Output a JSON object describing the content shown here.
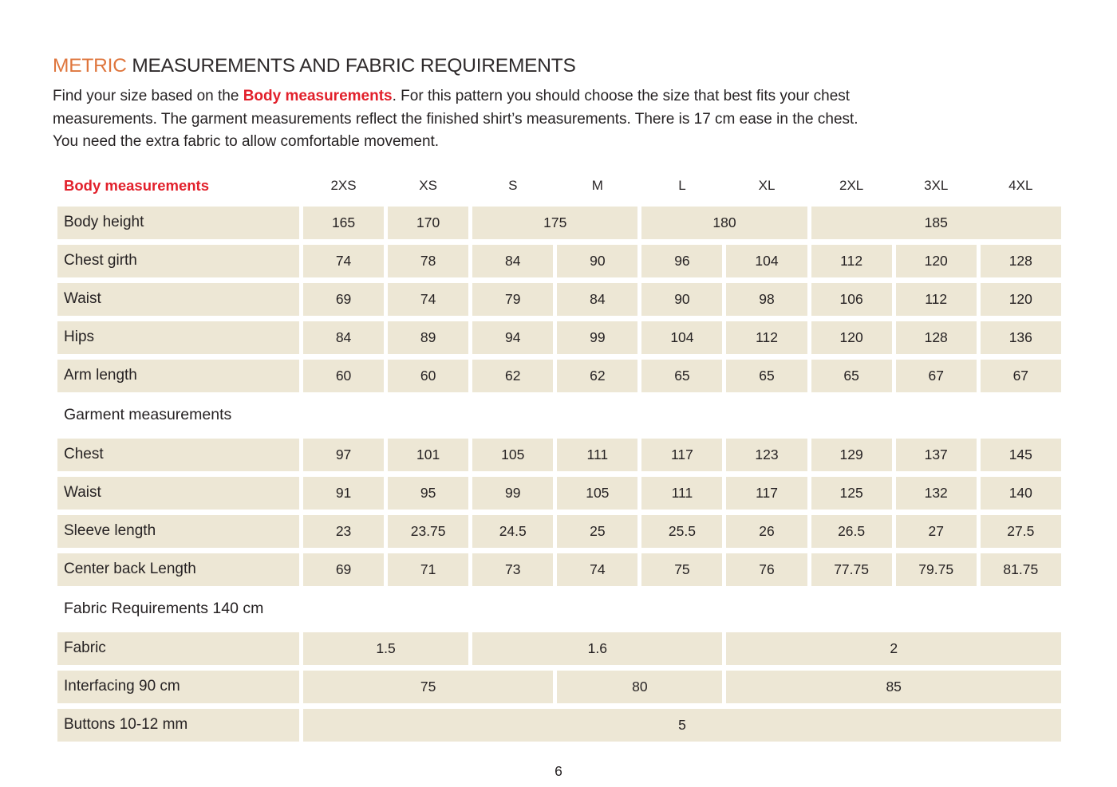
{
  "header": {
    "title_highlight": "METRIC",
    "title_rest": " MEASUREMENTS AND FABRIC REQUIREMENTS",
    "intro": {
      "line1_before": "Find your size based on the ",
      "line1_emphasis": "Body measurements",
      "line1_after": ". For this pattern you should choose the size that best fits your chest",
      "line2": "measurements. The garment measurements reflect the finished shirt’s measurements. There is 17 cm ease in the chest.",
      "line3": "You need the extra fabric to allow comfortable movement."
    }
  },
  "colors": {
    "accent_orange": "#DF763D",
    "accent_red": "#E2202B",
    "cell_background": "#EDE7D5",
    "text": "#262223"
  },
  "table": {
    "columns": [
      "2XS",
      "XS",
      "S",
      "M",
      "L",
      "XL",
      "2XL",
      "3XL",
      "4XL"
    ],
    "body_measurements": {
      "section_label": "Body measurements",
      "rows": [
        {
          "label": "Body height",
          "values": [
            "165",
            "170",
            "175",
            "180",
            "185"
          ],
          "spans": [
            1,
            1,
            2,
            2,
            3
          ]
        },
        {
          "label": "Chest girth",
          "values": [
            "74",
            "78",
            "84",
            "90",
            "96",
            "104",
            "112",
            "120",
            "128"
          ]
        },
        {
          "label": "Waist",
          "values": [
            "69",
            "74",
            "79",
            "84",
            "90",
            "98",
            "106",
            "112",
            "120"
          ]
        },
        {
          "label": "Hips",
          "values": [
            "84",
            "89",
            "94",
            "99",
            "104",
            "112",
            "120",
            "128",
            "136"
          ]
        },
        {
          "label": "Arm length",
          "values": [
            "60",
            "60",
            "62",
            "62",
            "65",
            "65",
            "65",
            "67",
            "67"
          ]
        }
      ]
    },
    "garment_measurements": {
      "section_label": "Garment measurements",
      "rows": [
        {
          "label": "Chest",
          "values": [
            "97",
            "101",
            "105",
            "111",
            "117",
            "123",
            "129",
            "137",
            "145"
          ]
        },
        {
          "label": "Waist",
          "values": [
            "91",
            "95",
            "99",
            "105",
            "111",
            "117",
            "125",
            "132",
            "140"
          ]
        },
        {
          "label": "Sleeve length",
          "values": [
            "23",
            "23.75",
            "24.5",
            "25",
            "25.5",
            "26",
            "26.5",
            "27",
            "27.5"
          ]
        },
        {
          "label": "Center back Length",
          "values": [
            "69",
            "71",
            "73",
            "74",
            "75",
            "76",
            "77.75",
            "79.75",
            "81.75"
          ]
        }
      ]
    },
    "fabric_requirements": {
      "section_label": "Fabric Requirements 140 cm",
      "rows": [
        {
          "label": "Fabric",
          "values": [
            "1.5",
            "1.6",
            "2"
          ],
          "spans": [
            2,
            3,
            4
          ]
        },
        {
          "label": "Interfacing 90 cm",
          "values": [
            "75",
            "80",
            "85"
          ],
          "spans": [
            3,
            2,
            4
          ]
        },
        {
          "label": "Buttons 10-12 mm",
          "values": [
            "5"
          ],
          "spans": [
            9
          ]
        }
      ]
    }
  },
  "footer": {
    "page_number": "6"
  }
}
